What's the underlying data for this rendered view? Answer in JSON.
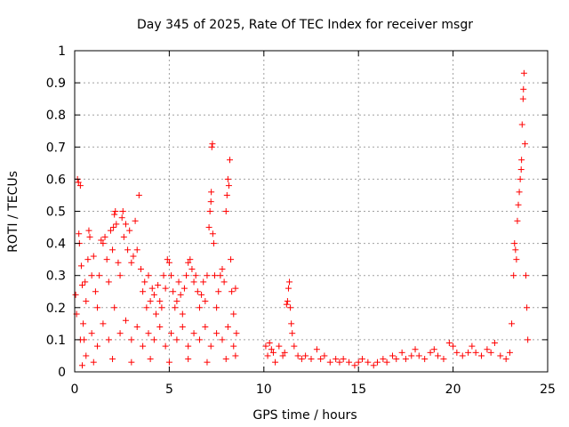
{
  "chart_data": {
    "type": "scatter",
    "title": "Day 345 of 2025, Rate Of TEC Index for receiver msgr",
    "xlabel": "GPS time / hours",
    "ylabel": "ROTI / TECUs",
    "xlim": [
      0,
      25
    ],
    "ylim": [
      0,
      1
    ],
    "xticks": [
      "0",
      "5",
      "10",
      "15",
      "20",
      "25"
    ],
    "yticks": [
      "0",
      "0.1",
      "0.2",
      "0.3",
      "0.4",
      "0.5",
      "0.6",
      "0.7",
      "0.8",
      "0.9",
      "1"
    ],
    "grid": true,
    "marker": "plus",
    "color": "#ff0000",
    "series": [
      {
        "points": [
          [
            0.05,
            0.24
          ],
          [
            0.1,
            0.18
          ],
          [
            0.15,
            0.6
          ],
          [
            0.2,
            0.59
          ],
          [
            0.22,
            0.43
          ],
          [
            0.25,
            0.4
          ],
          [
            0.3,
            0.58
          ],
          [
            0.35,
            0.33
          ],
          [
            0.4,
            0.27
          ],
          [
            0.45,
            0.15
          ],
          [
            0.5,
            0.1
          ],
          [
            0.55,
            0.28
          ],
          [
            0.6,
            0.22
          ],
          [
            0.7,
            0.35
          ],
          [
            0.75,
            0.44
          ],
          [
            0.8,
            0.42
          ],
          [
            0.9,
            0.3
          ],
          [
            1.0,
            0.36
          ],
          [
            1.1,
            0.25
          ],
          [
            1.2,
            0.2
          ],
          [
            1.3,
            0.3
          ],
          [
            1.4,
            0.41
          ],
          [
            1.5,
            0.4
          ],
          [
            1.6,
            0.42
          ],
          [
            1.7,
            0.35
          ],
          [
            1.8,
            0.28
          ],
          [
            1.9,
            0.44
          ],
          [
            2.0,
            0.38
          ],
          [
            2.05,
            0.45
          ],
          [
            2.1,
            0.49
          ],
          [
            2.15,
            0.5
          ],
          [
            2.2,
            0.46
          ],
          [
            2.3,
            0.34
          ],
          [
            2.4,
            0.3
          ],
          [
            2.5,
            0.48
          ],
          [
            2.55,
            0.5
          ],
          [
            2.6,
            0.42
          ],
          [
            2.7,
            0.46
          ],
          [
            2.8,
            0.38
          ],
          [
            2.9,
            0.44
          ],
          [
            3.0,
            0.34
          ],
          [
            3.1,
            0.36
          ],
          [
            3.2,
            0.47
          ],
          [
            3.3,
            0.38
          ],
          [
            3.4,
            0.55
          ],
          [
            3.5,
            0.32
          ],
          [
            3.6,
            0.25
          ],
          [
            3.7,
            0.28
          ],
          [
            3.8,
            0.2
          ],
          [
            3.9,
            0.3
          ],
          [
            4.0,
            0.22
          ],
          [
            4.1,
            0.26
          ],
          [
            4.2,
            0.24
          ],
          [
            4.3,
            0.18
          ],
          [
            4.4,
            0.27
          ],
          [
            4.5,
            0.22
          ],
          [
            4.6,
            0.2
          ],
          [
            4.7,
            0.3
          ],
          [
            4.8,
            0.26
          ],
          [
            4.9,
            0.35
          ],
          [
            5.0,
            0.34
          ],
          [
            5.1,
            0.3
          ],
          [
            5.2,
            0.25
          ],
          [
            5.3,
            0.2
          ],
          [
            5.4,
            0.22
          ],
          [
            5.5,
            0.28
          ],
          [
            5.6,
            0.24
          ],
          [
            5.7,
            0.18
          ],
          [
            5.8,
            0.26
          ],
          [
            5.9,
            0.3
          ],
          [
            6.0,
            0.34
          ],
          [
            6.1,
            0.35
          ],
          [
            6.2,
            0.32
          ],
          [
            6.3,
            0.28
          ],
          [
            6.4,
            0.3
          ],
          [
            6.5,
            0.25
          ],
          [
            6.6,
            0.2
          ],
          [
            6.7,
            0.24
          ],
          [
            6.8,
            0.28
          ],
          [
            6.9,
            0.22
          ],
          [
            7.0,
            0.3
          ],
          [
            7.1,
            0.45
          ],
          [
            7.15,
            0.5
          ],
          [
            7.2,
            0.53
          ],
          [
            7.22,
            0.56
          ],
          [
            7.25,
            0.7
          ],
          [
            7.28,
            0.71
          ],
          [
            7.3,
            0.43
          ],
          [
            7.35,
            0.4
          ],
          [
            7.4,
            0.3
          ],
          [
            7.5,
            0.2
          ],
          [
            7.6,
            0.25
          ],
          [
            7.7,
            0.3
          ],
          [
            7.8,
            0.32
          ],
          [
            7.9,
            0.28
          ],
          [
            8.0,
            0.5
          ],
          [
            8.05,
            0.55
          ],
          [
            8.1,
            0.6
          ],
          [
            8.15,
            0.58
          ],
          [
            8.2,
            0.66
          ],
          [
            8.25,
            0.35
          ],
          [
            8.3,
            0.25
          ],
          [
            8.4,
            0.18
          ],
          [
            8.5,
            0.26
          ],
          [
            8.55,
            0.12
          ],
          [
            0.3,
            0.1
          ],
          [
            0.6,
            0.05
          ],
          [
            0.9,
            0.12
          ],
          [
            1.2,
            0.08
          ],
          [
            1.5,
            0.15
          ],
          [
            1.8,
            0.1
          ],
          [
            2.1,
            0.2
          ],
          [
            2.4,
            0.12
          ],
          [
            2.7,
            0.16
          ],
          [
            3.0,
            0.1
          ],
          [
            3.3,
            0.14
          ],
          [
            3.6,
            0.08
          ],
          [
            3.9,
            0.12
          ],
          [
            4.2,
            0.1
          ],
          [
            4.5,
            0.14
          ],
          [
            4.8,
            0.08
          ],
          [
            5.1,
            0.12
          ],
          [
            5.4,
            0.1
          ],
          [
            5.7,
            0.14
          ],
          [
            6.0,
            0.08
          ],
          [
            6.3,
            0.12
          ],
          [
            6.6,
            0.1
          ],
          [
            6.9,
            0.14
          ],
          [
            7.2,
            0.08
          ],
          [
            7.5,
            0.12
          ],
          [
            7.8,
            0.1
          ],
          [
            8.1,
            0.14
          ],
          [
            8.4,
            0.08
          ],
          [
            0.4,
            0.02
          ],
          [
            1.0,
            0.03
          ],
          [
            2.0,
            0.04
          ],
          [
            3.0,
            0.03
          ],
          [
            4.0,
            0.04
          ],
          [
            5.0,
            0.03
          ],
          [
            6.0,
            0.04
          ],
          [
            7.0,
            0.03
          ],
          [
            8.0,
            0.04
          ],
          [
            8.5,
            0.05
          ],
          [
            10.1,
            0.08
          ],
          [
            10.2,
            0.05
          ],
          [
            10.3,
            0.09
          ],
          [
            10.4,
            0.07
          ],
          [
            10.5,
            0.06
          ],
          [
            10.6,
            0.03
          ],
          [
            10.8,
            0.08
          ],
          [
            11.0,
            0.05
          ],
          [
            11.1,
            0.06
          ],
          [
            11.2,
            0.21
          ],
          [
            11.25,
            0.22
          ],
          [
            11.3,
            0.26
          ],
          [
            11.35,
            0.28
          ],
          [
            11.4,
            0.2
          ],
          [
            11.45,
            0.15
          ],
          [
            11.5,
            0.12
          ],
          [
            11.6,
            0.08
          ],
          [
            11.8,
            0.05
          ],
          [
            12.0,
            0.04
          ],
          [
            12.2,
            0.05
          ],
          [
            12.5,
            0.04
          ],
          [
            12.8,
            0.07
          ],
          [
            13.0,
            0.04
          ],
          [
            13.2,
            0.05
          ],
          [
            13.5,
            0.03
          ],
          [
            13.8,
            0.04
          ],
          [
            14.0,
            0.03
          ],
          [
            14.2,
            0.04
          ],
          [
            14.5,
            0.03
          ],
          [
            14.8,
            0.02
          ],
          [
            15.0,
            0.03
          ],
          [
            15.2,
            0.04
          ],
          [
            15.5,
            0.03
          ],
          [
            15.8,
            0.02
          ],
          [
            16.0,
            0.03
          ],
          [
            16.3,
            0.04
          ],
          [
            16.5,
            0.03
          ],
          [
            16.8,
            0.05
          ],
          [
            17.0,
            0.04
          ],
          [
            17.3,
            0.06
          ],
          [
            17.5,
            0.04
          ],
          [
            17.8,
            0.05
          ],
          [
            18.0,
            0.07
          ],
          [
            18.2,
            0.05
          ],
          [
            18.5,
            0.04
          ],
          [
            18.8,
            0.06
          ],
          [
            19.0,
            0.07
          ],
          [
            19.2,
            0.05
          ],
          [
            19.5,
            0.04
          ],
          [
            19.8,
            0.09
          ],
          [
            20.0,
            0.08
          ],
          [
            20.2,
            0.06
          ],
          [
            20.5,
            0.05
          ],
          [
            20.8,
            0.06
          ],
          [
            21.0,
            0.08
          ],
          [
            21.2,
            0.06
          ],
          [
            21.5,
            0.05
          ],
          [
            21.8,
            0.07
          ],
          [
            22.0,
            0.06
          ],
          [
            22.2,
            0.09
          ],
          [
            22.5,
            0.05
          ],
          [
            22.8,
            0.04
          ],
          [
            23.0,
            0.06
          ],
          [
            23.1,
            0.15
          ],
          [
            23.2,
            0.3
          ],
          [
            23.25,
            0.4
          ],
          [
            23.3,
            0.38
          ],
          [
            23.35,
            0.35
          ],
          [
            23.4,
            0.47
          ],
          [
            23.45,
            0.52
          ],
          [
            23.5,
            0.56
          ],
          [
            23.55,
            0.6
          ],
          [
            23.6,
            0.63
          ],
          [
            23.62,
            0.66
          ],
          [
            23.65,
            0.77
          ],
          [
            23.7,
            0.85
          ],
          [
            23.72,
            0.88
          ],
          [
            23.75,
            0.93
          ],
          [
            23.8,
            0.71
          ],
          [
            23.85,
            0.3
          ],
          [
            23.9,
            0.2
          ],
          [
            23.95,
            0.1
          ]
        ]
      }
    ]
  }
}
